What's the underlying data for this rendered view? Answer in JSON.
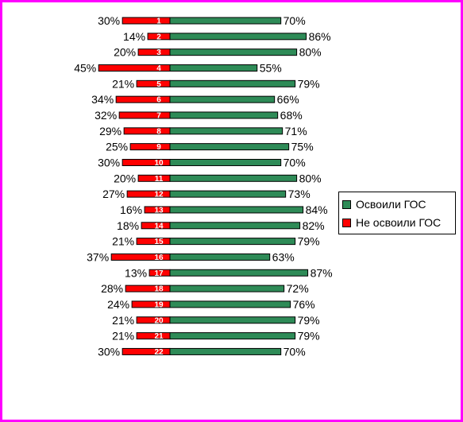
{
  "chart_data": {
    "type": "bar",
    "orientation": "horizontal-diverging",
    "categories": [
      "1",
      "2",
      "3",
      "4",
      "5",
      "6",
      "7",
      "8",
      "9",
      "10",
      "11",
      "12",
      "13",
      "14",
      "15",
      "16",
      "17",
      "18",
      "19",
      "20",
      "21",
      "22"
    ],
    "series": [
      {
        "name": "Освоили ГОС",
        "values": [
          70,
          86,
          80,
          55,
          79,
          66,
          68,
          71,
          75,
          70,
          80,
          73,
          84,
          82,
          79,
          63,
          87,
          72,
          76,
          79,
          79,
          70
        ],
        "color": "#2e8b57"
      },
      {
        "name": "Не освоили ГОС",
        "values": [
          30,
          14,
          20,
          45,
          21,
          34,
          32,
          29,
          25,
          30,
          20,
          27,
          16,
          18,
          21,
          37,
          13,
          28,
          24,
          21,
          21,
          30
        ],
        "color": "#ff0000"
      }
    ],
    "value_suffix": "%",
    "legend_position": "right",
    "grid": false,
    "xlim": [
      0,
      100
    ]
  },
  "legend": {
    "items": [
      {
        "label": "Освоили ГОС",
        "color": "#2e8b57"
      },
      {
        "label": "Не освоили ГОС",
        "color": "#ff0000"
      }
    ]
  },
  "frame_color": "#ff00ff"
}
